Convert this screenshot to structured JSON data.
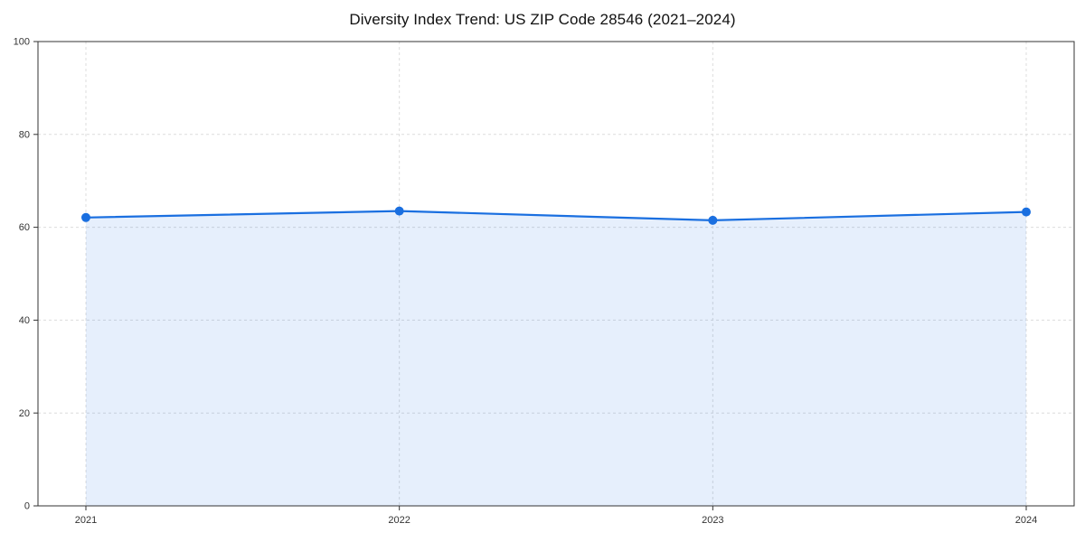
{
  "chart": {
    "title": "Diversity Index Trend: US ZIP Code 28546 (2021–2024)"
  },
  "chart_data": {
    "type": "area",
    "title": "Diversity Index Trend: US ZIP Code 28546 (2021–2024)",
    "categories": [
      "2021",
      "2022",
      "2023",
      "2024"
    ],
    "series": [
      {
        "name": "Diversity Index",
        "values": [
          62.1,
          63.5,
          61.5,
          63.3
        ]
      }
    ],
    "xlabel": "",
    "ylabel": "",
    "ylim": [
      0,
      100
    ],
    "yticks": [
      0,
      20,
      40,
      60,
      80,
      100
    ],
    "grid": true,
    "grid_style": "dashed",
    "legend": false,
    "colors": {
      "line": "#1a6fe0",
      "marker": "#1a6fe0",
      "fill": "#1a6fe0",
      "fill_opacity": 0.11,
      "grid": "#dcdcdc",
      "axis": "#333333",
      "tick_label": "#333333",
      "background": "#ffffff"
    }
  }
}
